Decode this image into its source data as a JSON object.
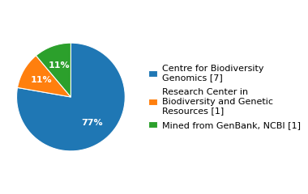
{
  "chart_data": {
    "type": "pie",
    "categories": [
      "Centre for Biodiversity\nGenomics [7]",
      "Research Center in\nBiodiversity and Genetic\nResources [1]",
      "Mined from GenBank, NCBI [1]"
    ],
    "values": [
      77,
      11,
      11
    ],
    "value_labels": [
      "77%",
      "11%",
      "11%"
    ],
    "data_labels": true,
    "legend": "center left"
  }
}
